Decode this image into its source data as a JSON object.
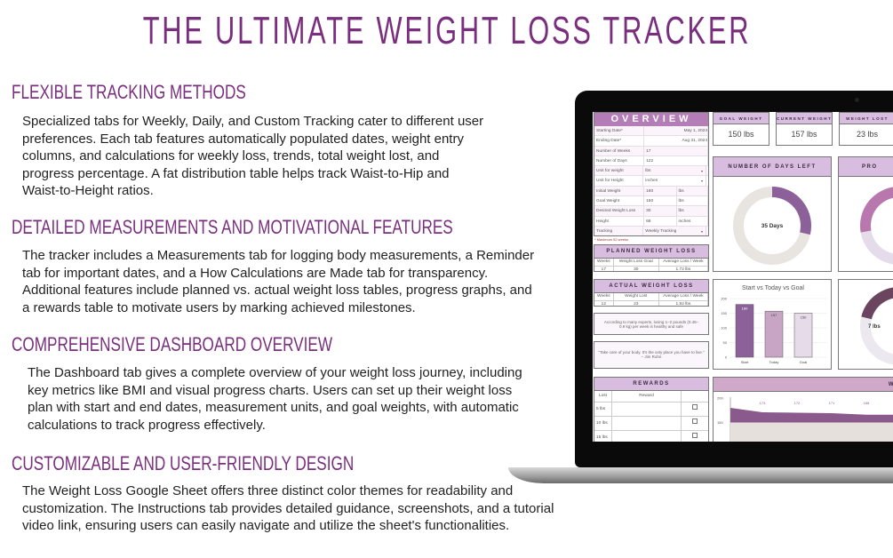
{
  "title": "THE ULTIMATE WEIGHT LOSS TRACKER",
  "sections": [
    {
      "heading": "FLEXIBLE TRACKING METHODS",
      "lines": [
        "Specialized tabs for Weekly, Daily, and Custom Tracking cater to different user",
        "preferences. Each tab features automatically populated dates, weight entry",
        "columns, and calculations for weekly loss, trends, total weight lost, and",
        "progress percentage. A fat distribution table helps track Waist-to-Hip and",
        "Waist-to-Height ratios."
      ]
    },
    {
      "heading": "DETAILED MEASUREMENTS AND MOTIVATIONAL FEATURES",
      "lines": [
        "The tracker includes a Measurements tab for logging body measurements, a Reminder",
        "tab for important dates, and a How Calculations are Made tab for transparency.",
        "Additional features include planned vs. actual weight loss tables, progress graphs, and",
        "a rewards table to motivate users by marking achieved milestones."
      ]
    },
    {
      "heading": "COMPREHENSIVE DASHBOARD OVERVIEW",
      "lines": [
        "The Dashboard tab gives a complete overview of your weight loss journey, including",
        "key metrics like BMI and visual progress charts. Users can set up their weight loss",
        "plan with start and end dates, measurement units, and goal weights, with automatic",
        "calculations to track progress effectively."
      ]
    },
    {
      "heading": "CUSTOMIZABLE AND USER-FRIENDLY DESIGN",
      "lines": [
        "The Weight Loss Google Sheet offers three distinct color themes for readability and",
        "customization. The Instructions tab provides detailed guidance, screenshots, and a tutorial",
        "video link, ensuring users can easily navigate and utilize the sheet's functionalities."
      ]
    }
  ],
  "dashboard": {
    "overview": {
      "title": "OVERVIEW",
      "rows": [
        [
          "Starting Date*",
          "May 1, 2024",
          ""
        ],
        [
          "Ending Date*",
          "Aug 31, 2024",
          ""
        ],
        [
          "Number of Weeks",
          "17",
          ""
        ],
        [
          "Number of Days",
          "122",
          ""
        ],
        [
          "Unit for weight",
          "lbs",
          "▾"
        ],
        [
          "Unit for Height",
          "inches",
          "▾"
        ],
        [
          "Initial Weight",
          "180",
          "lbs"
        ],
        [
          "Goal Weight",
          "150",
          "lbs"
        ],
        [
          "Desired Weight Loss",
          "30",
          "lbs"
        ],
        [
          "Height",
          "68",
          "inches"
        ],
        [
          "Tracking",
          "Weekly Tracking",
          "▾"
        ]
      ],
      "note": "* Maximum 52 weeks"
    },
    "planned": {
      "title": "PLANNED WEIGHT LOSS",
      "headers": [
        "Weeks",
        "Weight Loss Goal",
        "Average Loss / Week"
      ],
      "values": [
        "17",
        "30",
        "1.72 lbs"
      ]
    },
    "actual": {
      "title": "ACTUAL WEIGHT LOSS",
      "headers": [
        "Weeks",
        "Weight Lost",
        "Average Loss / Week"
      ],
      "values": [
        "12",
        "23",
        "1.92 lbs"
      ]
    },
    "advice": "According to many experts, losing 1–2 pounds (0.45–0.9 kg) per week is healthy and safe",
    "quote": "\"Take care of your body. It's the only place you have to live.\" – Jim Rohn",
    "rewards": {
      "title": "REWARDS",
      "headers": [
        "Lost",
        "Reward"
      ],
      "rows": [
        "5 lbs",
        "10 lbs",
        "15 lbs"
      ]
    },
    "cards": [
      {
        "label": "GOAL WEIGHT",
        "value": "150 lbs"
      },
      {
        "label": "CURRENT WEIGHT",
        "value": "157 lbs"
      },
      {
        "label": "WEIGHT LOST",
        "value": "23 lbs"
      }
    ],
    "days_left": {
      "title": "NUMBER OF DAYS LEFT",
      "label": "35 Days",
      "fraction": 0.287
    },
    "progress": {
      "title": "PRO",
      "fraction": 0.77
    },
    "remaining": {
      "label": "7 lbs",
      "fraction": 0.233
    },
    "line_panel_title": "W",
    "colors": {
      "accent": "#7a2f7e",
      "header": "#d9bde0",
      "overview_header": "#b57db8",
      "donut_track": "#e8e4e0",
      "donut_fill": "#8c6199"
    }
  },
  "chart_data": [
    {
      "type": "bar",
      "title": "Start vs Today vs Goal",
      "categories": [
        "Start",
        "Today",
        "Goal"
      ],
      "values": [
        180,
        157,
        150
      ],
      "ylim": [
        0,
        200
      ],
      "yticks": [
        "0",
        "50",
        "100",
        "150",
        "200"
      ],
      "colors": [
        "#8c6199",
        "#c9a5c5",
        "#e6dbe8"
      ]
    },
    {
      "type": "area",
      "yticks": [
        "100",
        "150",
        "200"
      ],
      "ylim": [
        100,
        200
      ],
      "point_labels": [
        "173",
        "172",
        "171",
        "168"
      ],
      "values": [
        173,
        172,
        171,
        168
      ]
    }
  ]
}
